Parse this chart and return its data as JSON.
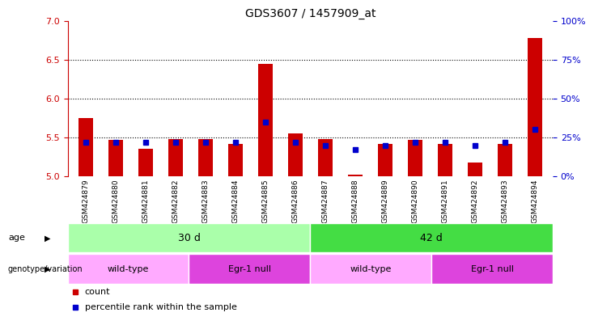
{
  "title": "GDS3607 / 1457909_at",
  "samples": [
    "GSM424879",
    "GSM424880",
    "GSM424881",
    "GSM424882",
    "GSM424883",
    "GSM424884",
    "GSM424885",
    "GSM424886",
    "GSM424887",
    "GSM424888",
    "GSM424889",
    "GSM424890",
    "GSM424891",
    "GSM424892",
    "GSM424893",
    "GSM424894"
  ],
  "red_values": [
    5.75,
    5.47,
    5.35,
    5.48,
    5.48,
    5.42,
    6.45,
    5.55,
    5.48,
    5.02,
    5.42,
    5.47,
    5.42,
    5.18,
    5.42,
    6.78
  ],
  "blue_values": [
    22,
    22,
    22,
    22,
    22,
    22,
    35,
    22,
    20,
    17,
    20,
    22,
    22,
    20,
    22,
    30
  ],
  "ylim_left": [
    5,
    7
  ],
  "ylim_right": [
    0,
    100
  ],
  "yticks_left": [
    5,
    5.5,
    6,
    6.5,
    7
  ],
  "yticks_right": [
    0,
    25,
    50,
    75,
    100
  ],
  "grid_values": [
    5.5,
    6.0,
    6.5
  ],
  "bar_color": "#cc0000",
  "dot_color": "#0000cc",
  "bar_bottom": 5.0,
  "age_groups": [
    {
      "label": "30 d",
      "start": 0,
      "end": 8,
      "color": "#aaffaa"
    },
    {
      "label": "42 d",
      "start": 8,
      "end": 16,
      "color": "#44dd44"
    }
  ],
  "geno_groups": [
    {
      "label": "wild-type",
      "start": 0,
      "end": 4,
      "color": "#ffaaff"
    },
    {
      "label": "Egr-1 null",
      "start": 4,
      "end": 8,
      "color": "#dd44dd"
    },
    {
      "label": "wild-type",
      "start": 8,
      "end": 12,
      "color": "#ffaaff"
    },
    {
      "label": "Egr-1 null",
      "start": 12,
      "end": 16,
      "color": "#dd44dd"
    }
  ],
  "left_axis_color": "#cc0000",
  "right_axis_color": "#0000cc",
  "bg_color": "#ffffff",
  "tick_bg_color": "#cccccc",
  "label_fontsize": 7.5,
  "bar_width": 0.5
}
